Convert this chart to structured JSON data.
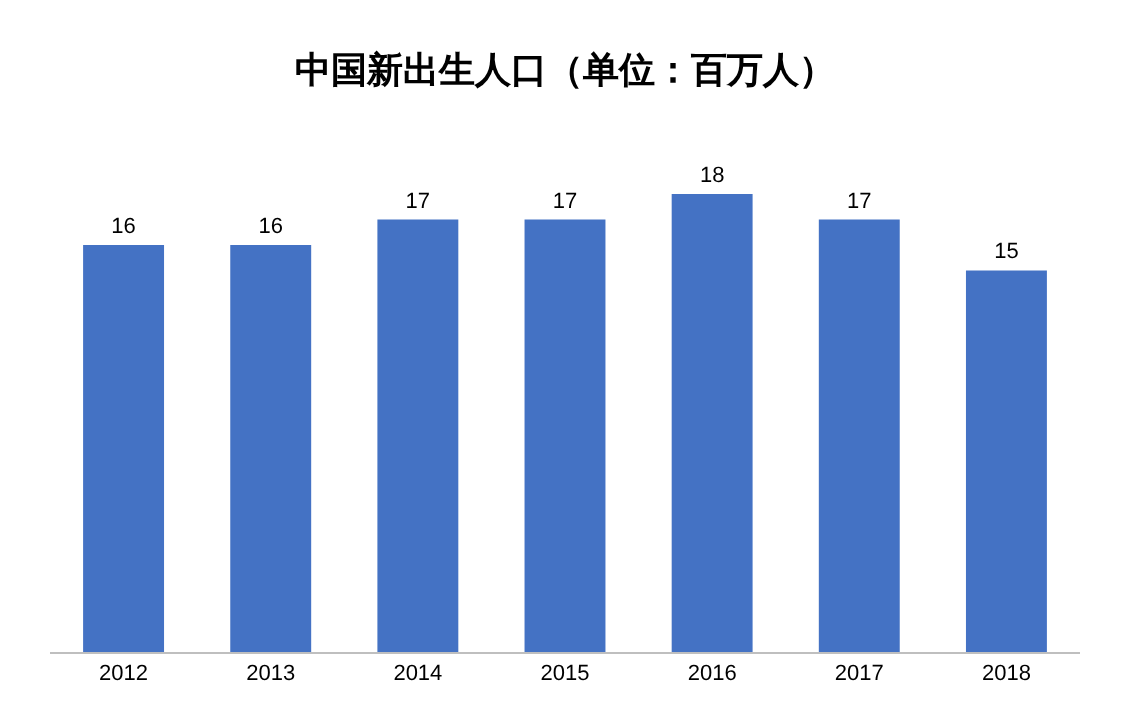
{
  "chart_data": {
    "type": "bar",
    "title": "中国新出生人口（单位：百万人）",
    "categories": [
      "2012",
      "2013",
      "2014",
      "2015",
      "2016",
      "2017",
      "2018"
    ],
    "values": [
      16,
      16,
      17,
      17,
      18,
      17,
      15
    ],
    "color": "#4472c4",
    "data_labels": true,
    "tick_labels": "x"
  }
}
